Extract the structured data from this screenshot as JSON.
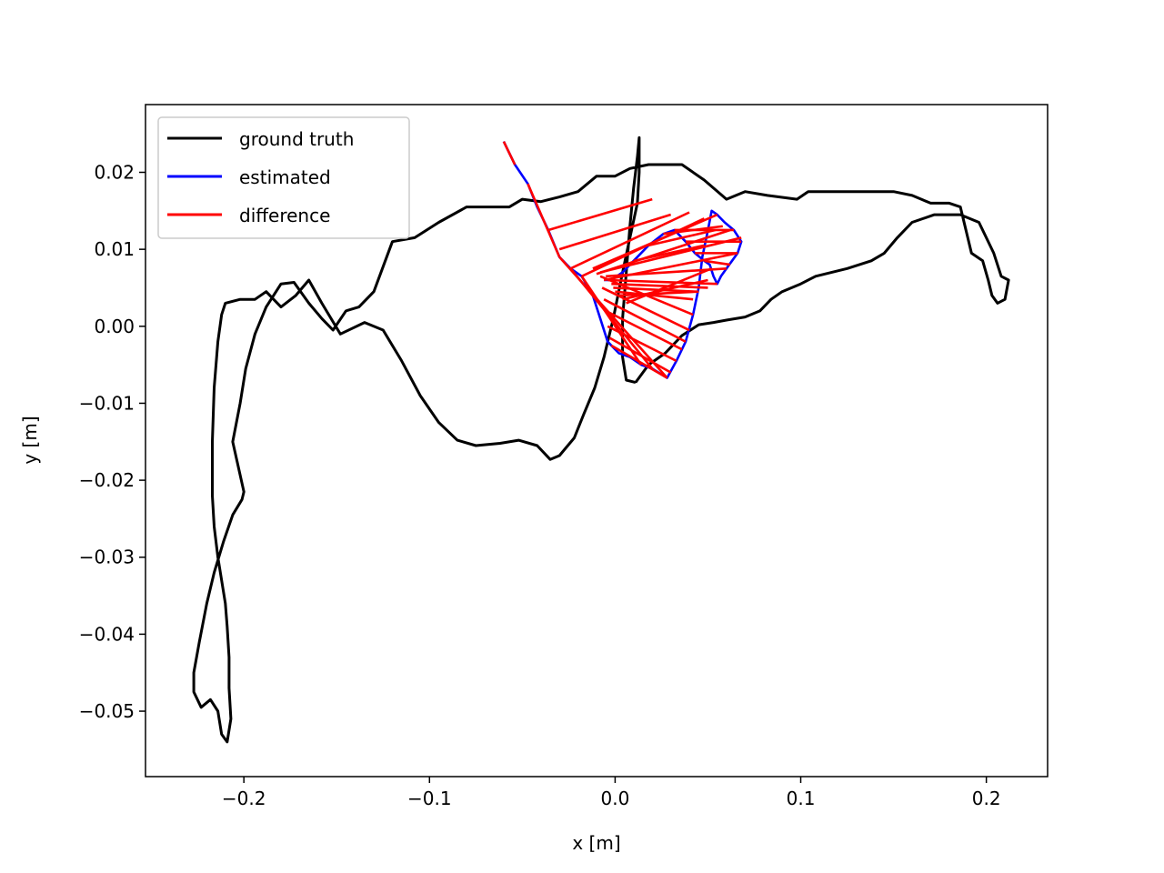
{
  "chart_data": {
    "type": "line",
    "title": "",
    "xlabel": "x [m]",
    "ylabel": "y [m]",
    "xlim": [
      -0.253,
      0.233
    ],
    "ylim": [
      -0.0585,
      0.0288
    ],
    "xticks": [
      {
        "value": -0.2,
        "label": "−0.2"
      },
      {
        "value": -0.1,
        "label": "−0.1"
      },
      {
        "value": 0.0,
        "label": "0.0"
      },
      {
        "value": 0.1,
        "label": "0.1"
      },
      {
        "value": 0.2,
        "label": "0.2"
      }
    ],
    "yticks": [
      {
        "value": 0.02,
        "label": "0.02"
      },
      {
        "value": 0.01,
        "label": "0.01"
      },
      {
        "value": 0.0,
        "label": "0.00"
      },
      {
        "value": -0.01,
        "label": "−0.01"
      },
      {
        "value": -0.02,
        "label": "−0.02"
      },
      {
        "value": -0.03,
        "label": "−0.03"
      },
      {
        "value": -0.04,
        "label": "−0.04"
      },
      {
        "value": -0.05,
        "label": "−0.05"
      }
    ],
    "grid": false,
    "legend_position": "top-left",
    "legend": [
      {
        "label": "ground truth",
        "color": "#000000"
      },
      {
        "label": "estimated",
        "color": "#0000ff"
      },
      {
        "label": "difference",
        "color": "#ff0000"
      }
    ],
    "series": [
      {
        "name": "ground truth",
        "color": "#000000",
        "points": [
          [
            0.011,
            -0.0073
          ],
          [
            0.006,
            -0.007
          ],
          [
            0.004,
            -0.004
          ],
          [
            0.004,
            0.001
          ],
          [
            0.006,
            0.007
          ],
          [
            0.008,
            0.013
          ],
          [
            0.01,
            0.018
          ],
          [
            0.012,
            0.022
          ],
          [
            0.013,
            0.0245
          ],
          [
            0.013,
            0.02
          ],
          [
            0.012,
            0.016
          ],
          [
            0.008,
            0.0115
          ],
          [
            0.004,
            0.007
          ],
          [
            -0.001,
            0.001
          ],
          [
            -0.006,
            -0.004
          ],
          [
            -0.011,
            -0.008
          ],
          [
            -0.017,
            -0.0115
          ],
          [
            -0.022,
            -0.0145
          ],
          [
            -0.03,
            -0.0168
          ],
          [
            -0.035,
            -0.0173
          ],
          [
            -0.042,
            -0.0155
          ],
          [
            -0.052,
            -0.0148
          ],
          [
            -0.062,
            -0.0152
          ],
          [
            -0.075,
            -0.0155
          ],
          [
            -0.085,
            -0.0148
          ],
          [
            -0.095,
            -0.0125
          ],
          [
            -0.105,
            -0.009
          ],
          [
            -0.115,
            -0.0045
          ],
          [
            -0.125,
            -0.0005
          ],
          [
            -0.135,
            0.0005
          ],
          [
            -0.148,
            -0.001
          ],
          [
            -0.158,
            0.003
          ],
          [
            -0.165,
            0.006
          ],
          [
            -0.172,
            0.004
          ],
          [
            -0.18,
            0.0025
          ],
          [
            -0.188,
            0.0045
          ],
          [
            -0.194,
            0.0035
          ],
          [
            -0.202,
            0.0035
          ],
          [
            -0.21,
            0.003
          ],
          [
            -0.212,
            0.0015
          ],
          [
            -0.214,
            -0.002
          ],
          [
            -0.216,
            -0.008
          ],
          [
            -0.217,
            -0.015
          ],
          [
            -0.217,
            -0.022
          ],
          [
            -0.216,
            -0.026
          ],
          [
            -0.214,
            -0.03
          ],
          [
            -0.212,
            -0.033
          ],
          [
            -0.21,
            -0.036
          ],
          [
            -0.209,
            -0.039
          ],
          [
            -0.208,
            -0.043
          ],
          [
            -0.208,
            -0.047
          ],
          [
            -0.207,
            -0.051
          ],
          [
            -0.209,
            -0.054
          ],
          [
            -0.212,
            -0.053
          ],
          [
            -0.214,
            -0.05
          ],
          [
            -0.218,
            -0.0485
          ],
          [
            -0.223,
            -0.0495
          ],
          [
            -0.227,
            -0.0475
          ],
          [
            -0.227,
            -0.045
          ],
          [
            -0.224,
            -0.041
          ],
          [
            -0.22,
            -0.036
          ],
          [
            -0.216,
            -0.032
          ],
          [
            -0.211,
            -0.028
          ],
          [
            -0.206,
            -0.0245
          ],
          [
            -0.201,
            -0.0225
          ],
          [
            -0.2,
            -0.0215
          ],
          [
            -0.206,
            -0.015
          ],
          [
            -0.202,
            -0.01
          ],
          [
            -0.199,
            -0.0055
          ],
          [
            -0.194,
            -0.001
          ],
          [
            -0.188,
            0.0025
          ],
          [
            -0.18,
            0.0055
          ],
          [
            -0.173,
            0.0057
          ],
          [
            -0.165,
            0.003
          ],
          [
            -0.158,
            0.001
          ],
          [
            -0.152,
            -0.0005
          ],
          [
            -0.145,
            0.002
          ],
          [
            -0.138,
            0.0025
          ],
          [
            -0.13,
            0.0045
          ],
          [
            -0.12,
            0.011
          ],
          [
            -0.108,
            0.0115
          ],
          [
            -0.095,
            0.0135
          ],
          [
            -0.08,
            0.0155
          ],
          [
            -0.066,
            0.0155
          ],
          [
            -0.057,
            0.0155
          ],
          [
            -0.05,
            0.0165
          ],
          [
            -0.04,
            0.0162
          ],
          [
            -0.03,
            0.0168
          ],
          [
            -0.02,
            0.0175
          ],
          [
            -0.01,
            0.0195
          ],
          [
            0.0,
            0.0195
          ],
          [
            0.008,
            0.0205
          ],
          [
            0.018,
            0.021
          ],
          [
            0.026,
            0.021
          ],
          [
            0.036,
            0.021
          ],
          [
            0.048,
            0.019
          ],
          [
            0.06,
            0.0165
          ],
          [
            0.07,
            0.0175
          ],
          [
            0.082,
            0.017
          ],
          [
            0.098,
            0.0165
          ],
          [
            0.104,
            0.0175
          ],
          [
            0.118,
            0.0175
          ],
          [
            0.135,
            0.0175
          ],
          [
            0.15,
            0.0175
          ],
          [
            0.16,
            0.017
          ],
          [
            0.17,
            0.016
          ],
          [
            0.18,
            0.016
          ],
          [
            0.186,
            0.0155
          ],
          [
            0.189,
            0.0125
          ],
          [
            0.192,
            0.0095
          ],
          [
            0.198,
            0.0085
          ],
          [
            0.201,
            0.006
          ],
          [
            0.203,
            0.004
          ],
          [
            0.206,
            0.003
          ],
          [
            0.21,
            0.0035
          ],
          [
            0.212,
            0.006
          ],
          [
            0.208,
            0.0065
          ],
          [
            0.204,
            0.0095
          ],
          [
            0.196,
            0.0135
          ],
          [
            0.186,
            0.0145
          ],
          [
            0.172,
            0.0145
          ],
          [
            0.16,
            0.0135
          ],
          [
            0.152,
            0.0115
          ],
          [
            0.145,
            0.0095
          ],
          [
            0.138,
            0.0085
          ],
          [
            0.125,
            0.0075
          ],
          [
            0.108,
            0.0065
          ],
          [
            0.1,
            0.0055
          ],
          [
            0.09,
            0.0045
          ],
          [
            0.084,
            0.0035
          ],
          [
            0.078,
            0.002
          ],
          [
            0.07,
            0.0012
          ],
          [
            0.06,
            0.0008
          ],
          [
            0.053,
            0.0005
          ],
          [
            0.045,
            0.0002
          ],
          [
            0.036,
            -0.0012
          ],
          [
            0.027,
            -0.0035
          ],
          [
            0.018,
            -0.005
          ],
          [
            0.011,
            -0.0073
          ]
        ]
      },
      {
        "name": "estimated",
        "color": "#0000ff",
        "points": [
          [
            -0.06,
            0.024
          ],
          [
            -0.054,
            0.021
          ],
          [
            -0.047,
            0.0185
          ],
          [
            -0.042,
            0.0155
          ],
          [
            -0.036,
            0.0125
          ],
          [
            -0.03,
            0.009
          ],
          [
            -0.024,
            0.0075
          ],
          [
            -0.018,
            0.0065
          ],
          [
            -0.012,
            0.004
          ],
          [
            -0.008,
            0.001
          ],
          [
            -0.004,
            -0.002
          ],
          [
            0.002,
            -0.0035
          ],
          [
            0.008,
            -0.004
          ],
          [
            0.014,
            -0.005
          ],
          [
            0.02,
            -0.0055
          ],
          [
            0.028,
            -0.0067
          ],
          [
            0.033,
            -0.0045
          ],
          [
            0.038,
            -0.002
          ],
          [
            0.042,
            0.0015
          ],
          [
            0.045,
            0.005
          ],
          [
            0.047,
            0.009
          ],
          [
            0.05,
            0.0125
          ],
          [
            0.052,
            0.015
          ],
          [
            0.055,
            0.0145
          ],
          [
            0.059,
            0.0135
          ],
          [
            0.064,
            0.0125
          ],
          [
            0.068,
            0.011
          ],
          [
            0.066,
            0.0095
          ],
          [
            0.063,
            0.0085
          ],
          [
            0.06,
            0.0075
          ],
          [
            0.057,
            0.0065
          ],
          [
            0.055,
            0.0055
          ],
          [
            0.053,
            0.0065
          ],
          [
            0.051,
            0.008
          ],
          [
            0.048,
            0.0085
          ],
          [
            0.043,
            0.0095
          ],
          [
            0.038,
            0.011
          ],
          [
            0.032,
            0.0125
          ],
          [
            0.026,
            0.012
          ],
          [
            0.018,
            0.0105
          ],
          [
            0.01,
            0.0085
          ],
          [
            0.004,
            0.007
          ],
          [
            -0.002,
            0.006
          ],
          [
            -0.006,
            0.006
          ]
        ]
      },
      {
        "name": "difference",
        "color": "#ff0000",
        "points": []
      }
    ],
    "difference_pairs": [
      [
        [
          -0.06,
          0.024
        ],
        [
          -0.054,
          0.021
        ]
      ],
      [
        [
          -0.047,
          0.0185
        ],
        [
          -0.03,
          0.009
        ]
      ],
      [
        [
          -0.036,
          0.0125
        ],
        [
          0.02,
          0.0165
        ]
      ],
      [
        [
          -0.03,
          0.01
        ],
        [
          0.03,
          0.0145
        ]
      ],
      [
        [
          -0.024,
          0.0075
        ],
        [
          0.04,
          0.0148
        ]
      ],
      [
        [
          -0.018,
          0.0065
        ],
        [
          0.048,
          0.014
        ]
      ],
      [
        [
          -0.012,
          0.0075
        ],
        [
          0.055,
          0.0145
        ]
      ],
      [
        [
          -0.01,
          0.0068
        ],
        [
          0.062,
          0.0125
        ]
      ],
      [
        [
          -0.008,
          0.007
        ],
        [
          0.068,
          0.0115
        ]
      ],
      [
        [
          -0.006,
          0.006
        ],
        [
          0.066,
          0.0095
        ]
      ],
      [
        [
          -0.005,
          0.0065
        ],
        [
          0.06,
          0.0075
        ]
      ],
      [
        [
          -0.004,
          0.006
        ],
        [
          0.055,
          0.0055
        ]
      ],
      [
        [
          -0.002,
          0.0055
        ],
        [
          0.05,
          0.005
        ]
      ],
      [
        [
          -0.001,
          0.005
        ],
        [
          0.044,
          0.0045
        ]
      ],
      [
        [
          0.0,
          0.0045
        ],
        [
          0.042,
          0.0035
        ]
      ],
      [
        [
          0.002,
          0.004
        ],
        [
          0.045,
          0.0045
        ]
      ],
      [
        [
          0.004,
          0.0035
        ],
        [
          0.05,
          0.006
        ]
      ],
      [
        [
          0.006,
          0.003
        ],
        [
          0.052,
          0.0075
        ]
      ],
      [
        [
          -0.008,
          0.0065
        ],
        [
          0.042,
          0.0015
        ]
      ],
      [
        [
          -0.007,
          0.005
        ],
        [
          0.04,
          -0.0005
        ]
      ],
      [
        [
          -0.006,
          0.0035
        ],
        [
          0.038,
          -0.002
        ]
      ],
      [
        [
          -0.005,
          0.002
        ],
        [
          0.036,
          -0.003
        ]
      ],
      [
        [
          -0.004,
          0.0
        ],
        [
          0.033,
          -0.0045
        ]
      ],
      [
        [
          -0.003,
          -0.0015
        ],
        [
          0.03,
          -0.006
        ]
      ],
      [
        [
          -0.002,
          -0.0025
        ],
        [
          0.028,
          -0.0067
        ]
      ],
      [
        [
          -0.03,
          0.009
        ],
        [
          0.028,
          -0.0067
        ]
      ],
      [
        [
          -0.024,
          0.0075
        ],
        [
          0.02,
          -0.0055
        ]
      ],
      [
        [
          -0.018,
          0.0065
        ],
        [
          0.014,
          -0.005
        ]
      ],
      [
        [
          0.01,
          0.0085
        ],
        [
          0.048,
          0.0105
        ]
      ],
      [
        [
          0.018,
          0.0105
        ],
        [
          0.054,
          0.0125
        ]
      ],
      [
        [
          0.026,
          0.012
        ],
        [
          0.058,
          0.013
        ]
      ],
      [
        [
          0.032,
          0.0125
        ],
        [
          0.064,
          0.0125
        ]
      ],
      [
        [
          0.038,
          0.011
        ],
        [
          0.068,
          0.011
        ]
      ],
      [
        [
          0.043,
          0.0095
        ],
        [
          0.066,
          0.0095
        ]
      ],
      [
        [
          0.048,
          0.0085
        ],
        [
          0.062,
          0.008
        ]
      ]
    ]
  }
}
